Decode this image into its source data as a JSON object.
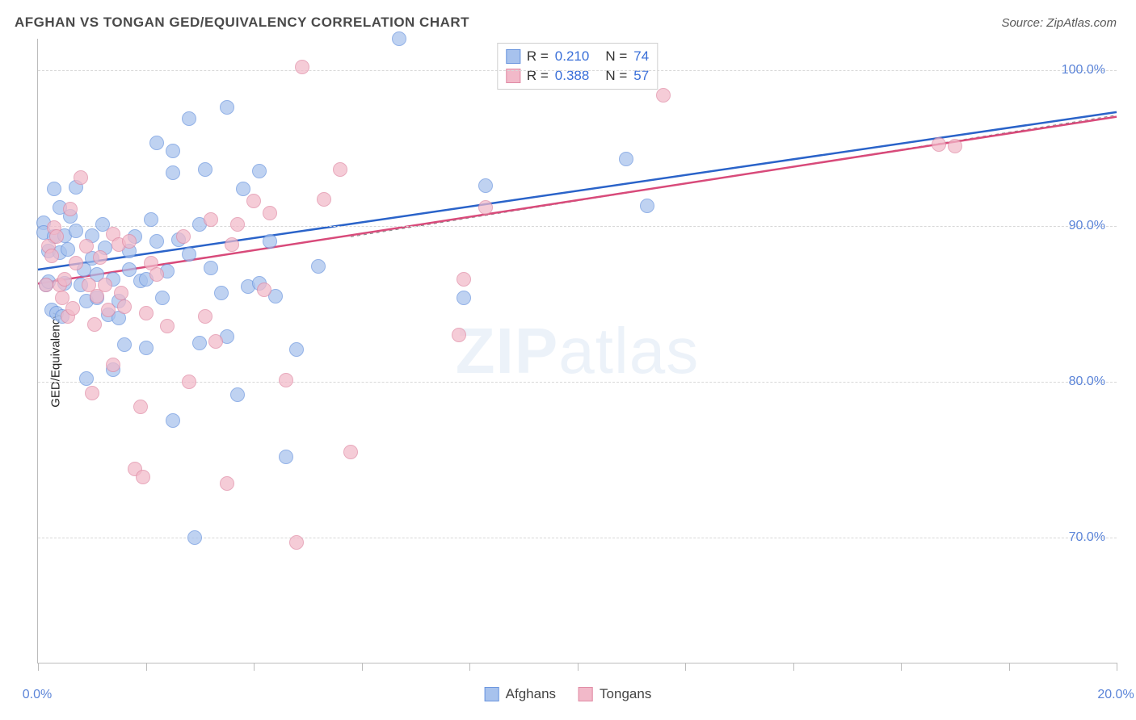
{
  "chart": {
    "type": "scatter",
    "title": "AFGHAN VS TONGAN GED/EQUIVALENCY CORRELATION CHART",
    "source_label": "Source: ZipAtlas.com",
    "ylabel": "GED/Equivalency",
    "background_color": "#ffffff",
    "grid_color": "#d8d8d8",
    "axis_color": "#bcbcbc",
    "tick_label_color": "#5b84d8",
    "watermark": {
      "text_bold": "ZIP",
      "text_rest": "atlas",
      "color": "rgba(120,160,210,0.14)",
      "fontsize": 80
    },
    "xlim": [
      0,
      20
    ],
    "ylim": [
      62,
      102
    ],
    "x_ticks": [
      0,
      2,
      4,
      6,
      8,
      10,
      12,
      14,
      16,
      18,
      20
    ],
    "x_tick_labels": {
      "0": "0.0%",
      "20": "20.0%"
    },
    "y_ticks": [
      70,
      80,
      90,
      100
    ],
    "y_tick_labels": {
      "70": "70.0%",
      "80": "80.0%",
      "90": "90.0%",
      "100": "100.0%"
    },
    "marker_radius": 9,
    "marker_fill_opacity": 0.35,
    "series": [
      {
        "name": "Afghans",
        "color_stroke": "#6a95de",
        "color_fill": "#a7c2ed",
        "r_value": "0.210",
        "n_value": "74",
        "trend": {
          "x1": 0,
          "y1": 87.2,
          "x2": 20,
          "y2": 97.3,
          "width": 2.5,
          "color": "#2a63c9"
        },
        "points": [
          [
            0.1,
            90.2
          ],
          [
            0.1,
            89.6
          ],
          [
            0.15,
            86.2
          ],
          [
            0.2,
            88.4
          ],
          [
            0.2,
            86.4
          ],
          [
            0.25,
            84.6
          ],
          [
            0.3,
            89.3
          ],
          [
            0.3,
            92.4
          ],
          [
            0.35,
            84.4
          ],
          [
            0.4,
            91.2
          ],
          [
            0.4,
            88.3
          ],
          [
            0.45,
            84.2
          ],
          [
            0.5,
            89.4
          ],
          [
            0.5,
            86.3
          ],
          [
            0.55,
            88.5
          ],
          [
            0.6,
            90.6
          ],
          [
            0.7,
            89.7
          ],
          [
            0.7,
            92.5
          ],
          [
            0.8,
            86.2
          ],
          [
            0.85,
            87.2
          ],
          [
            0.9,
            85.2
          ],
          [
            0.9,
            80.2
          ],
          [
            1.0,
            87.9
          ],
          [
            1.0,
            89.4
          ],
          [
            1.1,
            85.4
          ],
          [
            1.1,
            86.9
          ],
          [
            1.2,
            90.1
          ],
          [
            1.25,
            88.6
          ],
          [
            1.3,
            84.3
          ],
          [
            1.4,
            86.6
          ],
          [
            1.4,
            80.8
          ],
          [
            1.5,
            85.2
          ],
          [
            1.5,
            84.1
          ],
          [
            1.6,
            82.4
          ],
          [
            1.7,
            87.2
          ],
          [
            1.7,
            88.4
          ],
          [
            1.8,
            89.3
          ],
          [
            1.9,
            86.5
          ],
          [
            2.0,
            82.2
          ],
          [
            2.0,
            86.6
          ],
          [
            2.1,
            90.4
          ],
          [
            2.2,
            95.3
          ],
          [
            2.2,
            89.0
          ],
          [
            2.3,
            85.4
          ],
          [
            2.4,
            87.1
          ],
          [
            2.5,
            93.4
          ],
          [
            2.5,
            94.8
          ],
          [
            2.5,
            77.5
          ],
          [
            2.6,
            89.1
          ],
          [
            2.8,
            96.9
          ],
          [
            2.8,
            88.2
          ],
          [
            2.9,
            70.0
          ],
          [
            3.0,
            82.5
          ],
          [
            3.0,
            90.1
          ],
          [
            3.1,
            93.6
          ],
          [
            3.2,
            87.3
          ],
          [
            3.4,
            85.7
          ],
          [
            3.5,
            97.6
          ],
          [
            3.5,
            82.9
          ],
          [
            3.7,
            79.2
          ],
          [
            3.8,
            92.4
          ],
          [
            3.9,
            86.1
          ],
          [
            4.1,
            93.5
          ],
          [
            4.1,
            86.3
          ],
          [
            4.3,
            89.0
          ],
          [
            4.4,
            85.5
          ],
          [
            4.6,
            75.2
          ],
          [
            4.8,
            82.1
          ],
          [
            5.2,
            87.4
          ],
          [
            6.7,
            102.0
          ],
          [
            7.9,
            85.4
          ],
          [
            8.3,
            92.6
          ],
          [
            10.9,
            94.3
          ],
          [
            11.3,
            91.3
          ]
        ]
      },
      {
        "name": "Tongans",
        "color_stroke": "#e08aa4",
        "color_fill": "#f2b9c9",
        "r_value": "0.388",
        "n_value": "57",
        "trend": {
          "x1": 0,
          "y1": 86.3,
          "x2": 20,
          "y2": 97.0,
          "width": 2.5,
          "color": "#d84a7a"
        },
        "points": [
          [
            0.15,
            86.2
          ],
          [
            0.2,
            88.7
          ],
          [
            0.25,
            88.1
          ],
          [
            0.3,
            89.9
          ],
          [
            0.35,
            89.3
          ],
          [
            0.4,
            86.2
          ],
          [
            0.45,
            85.4
          ],
          [
            0.5,
            86.6
          ],
          [
            0.55,
            84.2
          ],
          [
            0.6,
            91.1
          ],
          [
            0.65,
            84.7
          ],
          [
            0.7,
            87.6
          ],
          [
            0.8,
            93.1
          ],
          [
            0.9,
            88.7
          ],
          [
            0.95,
            86.2
          ],
          [
            1.0,
            79.3
          ],
          [
            1.05,
            83.7
          ],
          [
            1.1,
            85.5
          ],
          [
            1.15,
            88.0
          ],
          [
            1.25,
            86.2
          ],
          [
            1.3,
            84.6
          ],
          [
            1.4,
            89.5
          ],
          [
            1.4,
            81.1
          ],
          [
            1.5,
            88.8
          ],
          [
            1.55,
            85.7
          ],
          [
            1.6,
            84.8
          ],
          [
            1.7,
            89.0
          ],
          [
            1.8,
            74.4
          ],
          [
            1.9,
            78.4
          ],
          [
            1.95,
            73.9
          ],
          [
            2.0,
            84.4
          ],
          [
            2.1,
            87.6
          ],
          [
            2.2,
            86.9
          ],
          [
            2.4,
            83.6
          ],
          [
            2.7,
            89.3
          ],
          [
            2.8,
            80.0
          ],
          [
            3.1,
            84.2
          ],
          [
            3.2,
            90.4
          ],
          [
            3.3,
            82.6
          ],
          [
            3.5,
            73.5
          ],
          [
            3.6,
            88.8
          ],
          [
            3.7,
            90.1
          ],
          [
            4.0,
            91.6
          ],
          [
            4.2,
            85.9
          ],
          [
            4.3,
            90.8
          ],
          [
            4.6,
            80.1
          ],
          [
            4.8,
            69.7
          ],
          [
            4.9,
            100.2
          ],
          [
            5.3,
            91.7
          ],
          [
            5.6,
            93.6
          ],
          [
            5.8,
            75.5
          ],
          [
            7.8,
            83.0
          ],
          [
            7.9,
            86.6
          ],
          [
            8.3,
            91.2
          ],
          [
            11.6,
            98.4
          ],
          [
            16.7,
            95.2
          ],
          [
            17.0,
            95.1
          ]
        ]
      }
    ],
    "legend_bottom": [
      {
        "label": "Afghans",
        "fill": "#a7c2ed",
        "stroke": "#6a95de"
      },
      {
        "label": "Tongans",
        "fill": "#f2b9c9",
        "stroke": "#e08aa4"
      }
    ],
    "guide_line": {
      "x1": 5.8,
      "y1": 89.3,
      "x2": 20,
      "y2": 97.1,
      "color": "#888888",
      "dash": "4,4",
      "width": 1
    }
  }
}
